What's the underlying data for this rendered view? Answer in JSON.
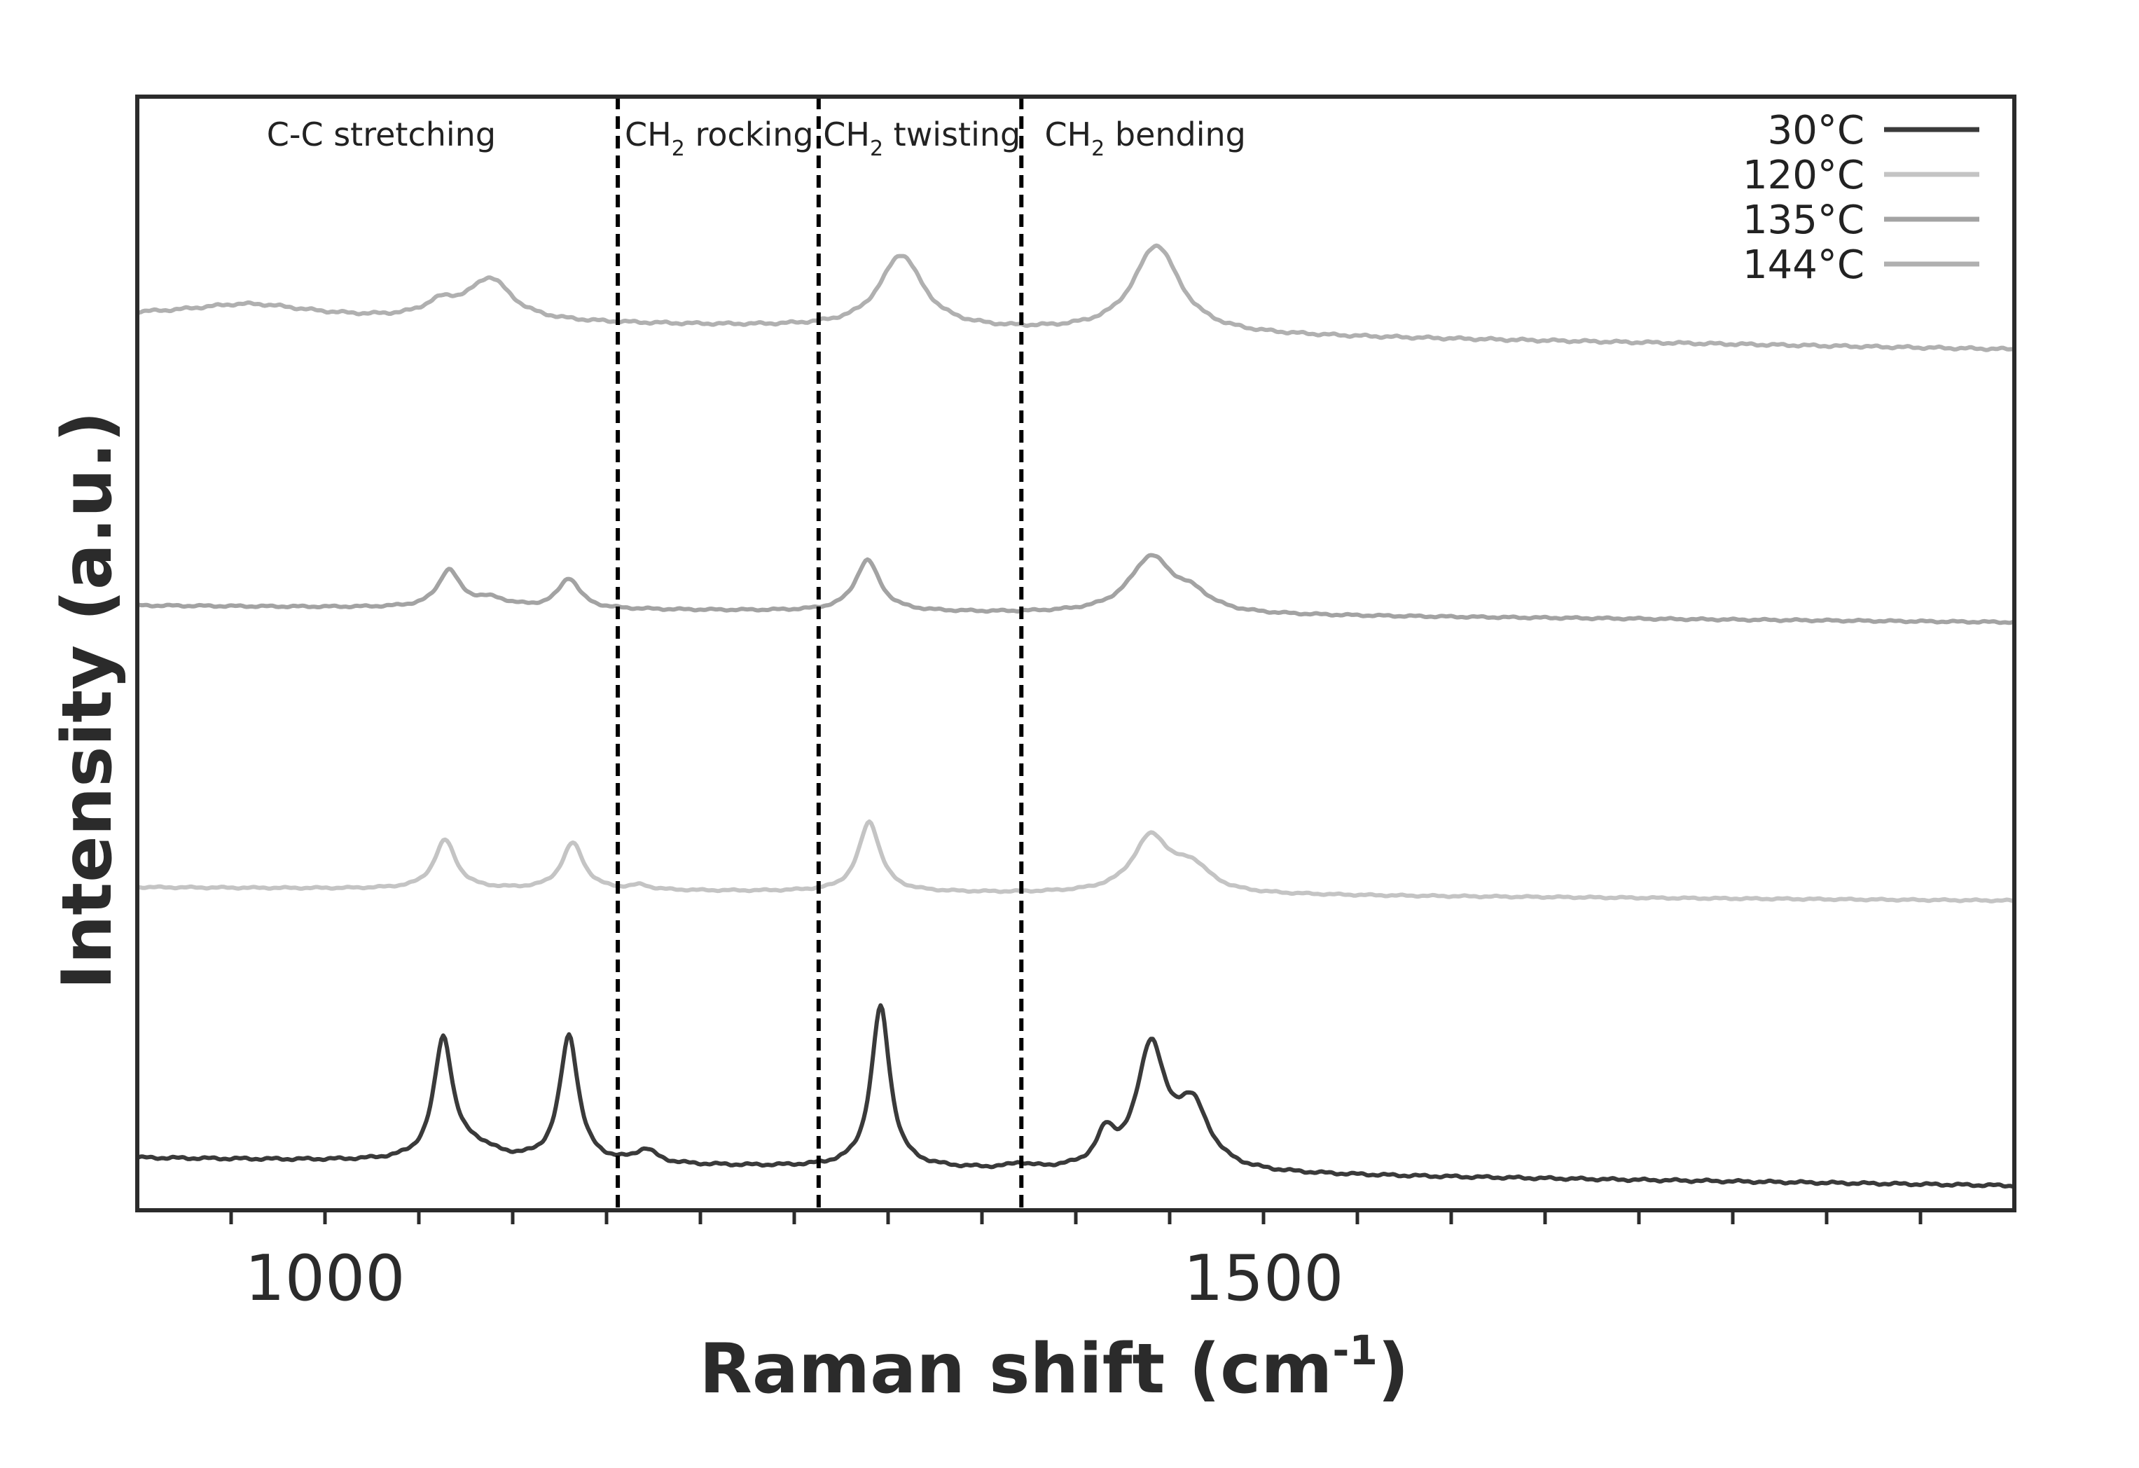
{
  "chart_data": {
    "type": "line",
    "xlabel_main": "Raman shift (cm",
    "xlabel_sup": "-1",
    "xlabel_end": ")",
    "ylabel": "Intensity (a.u.)",
    "xlim": [
      900,
      1900
    ],
    "ylim": [
      0,
      1
    ],
    "xticks_labeled": [
      1000,
      1500
    ],
    "xticks_minor": [
      950,
      1050,
      1100,
      1150,
      1200,
      1250,
      1300,
      1350,
      1400,
      1450,
      1550,
      1600,
      1650,
      1700,
      1750,
      1800,
      1850
    ],
    "divider_positions": [
      1156,
      1263,
      1371
    ],
    "region_labels": [
      {
        "main": "C-C stretching",
        "sub": "",
        "rest": "",
        "x": 1030
      },
      {
        "main": "CH",
        "sub": "2",
        "rest": " rocking",
        "x": 1210
      },
      {
        "main": "CH",
        "sub": "2",
        "rest": " twisting",
        "x": 1318
      },
      {
        "main": "CH",
        "sub": "2",
        "rest": " bending",
        "x": 1437
      }
    ],
    "legend_position": "top-right",
    "series": [
      {
        "name": "30°C",
        "color": "#3a3a3a",
        "baseline": 0.047,
        "slope": -2.5e-05,
        "noise": 0.0012,
        "peaks": [
          {
            "center": 1063,
            "height": 0.108,
            "width": 6
          },
          {
            "center": 1080,
            "height": 0.012,
            "width": 14
          },
          {
            "center": 1130,
            "height": 0.114,
            "width": 6
          },
          {
            "center": 1171,
            "height": 0.012,
            "width": 7
          },
          {
            "center": 1296,
            "height": 0.145,
            "width": 6
          },
          {
            "center": 1370,
            "height": 0.004,
            "width": 6
          },
          {
            "center": 1416,
            "height": 0.028,
            "width": 6
          },
          {
            "center": 1440,
            "height": 0.108,
            "width": 9
          },
          {
            "center": 1462,
            "height": 0.056,
            "width": 11
          }
        ]
      },
      {
        "name": "120°C",
        "color": "#c4c4c4",
        "baseline": 0.29,
        "slope": -1.2e-05,
        "noise": 0.0008,
        "peaks": [
          {
            "center": 1064,
            "height": 0.044,
            "width": 7
          },
          {
            "center": 1132,
            "height": 0.042,
            "width": 7
          },
          {
            "center": 1168,
            "height": 0.004,
            "width": 6
          },
          {
            "center": 1290,
            "height": 0.063,
            "width": 7
          },
          {
            "center": 1440,
            "height": 0.05,
            "width": 12
          },
          {
            "center": 1462,
            "height": 0.022,
            "width": 12
          }
        ]
      },
      {
        "name": "135°C",
        "color": "#a3a3a3",
        "baseline": 0.543,
        "slope": -1.5e-05,
        "noise": 0.0009,
        "peaks": [
          {
            "center": 1066,
            "height": 0.033,
            "width": 7
          },
          {
            "center": 1088,
            "height": 0.008,
            "width": 12
          },
          {
            "center": 1130,
            "height": 0.027,
            "width": 7
          },
          {
            "center": 1289,
            "height": 0.046,
            "width": 8
          },
          {
            "center": 1440,
            "height": 0.05,
            "width": 14
          },
          {
            "center": 1462,
            "height": 0.014,
            "width": 12
          }
        ]
      },
      {
        "name": "144°C",
        "color": "#b0b0b0",
        "baseline": 0.803,
        "slope": -3e-05,
        "noise": 0.0012,
        "peaks": [
          {
            "center": 960,
            "height": 0.012,
            "width": 40
          },
          {
            "center": 1062,
            "height": 0.013,
            "width": 11
          },
          {
            "center": 1088,
            "height": 0.037,
            "width": 14
          },
          {
            "center": 1307,
            "height": 0.066,
            "width": 14
          },
          {
            "center": 1443,
            "height": 0.079,
            "width": 15
          }
        ]
      }
    ]
  }
}
